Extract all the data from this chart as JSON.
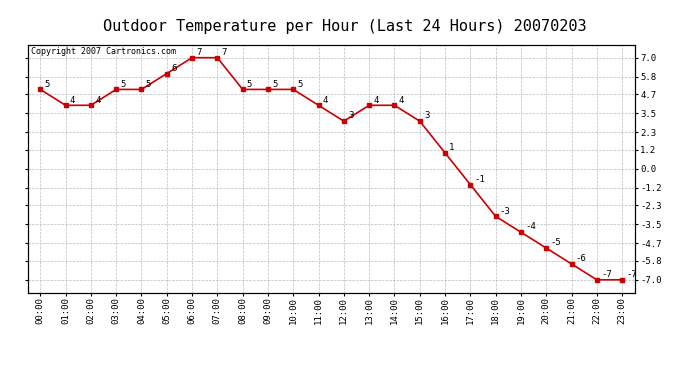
{
  "title": "Outdoor Temperature per Hour (Last 24 Hours) 20070203",
  "copyright_text": "Copyright 2007 Cartronics.com",
  "hours": [
    "00:00",
    "01:00",
    "02:00",
    "03:00",
    "04:00",
    "05:00",
    "06:00",
    "07:00",
    "08:00",
    "09:00",
    "10:00",
    "11:00",
    "12:00",
    "13:00",
    "14:00",
    "15:00",
    "16:00",
    "17:00",
    "18:00",
    "19:00",
    "20:00",
    "21:00",
    "22:00",
    "23:00"
  ],
  "temps": [
    5,
    4,
    4,
    5,
    5,
    6,
    7,
    7,
    5,
    5,
    5,
    4,
    3,
    4,
    4,
    3,
    1,
    -1,
    -3,
    -4,
    -5,
    -6,
    -7,
    -7
  ],
  "yticks": [
    7.0,
    5.8,
    4.7,
    3.5,
    2.3,
    1.2,
    0.0,
    -1.2,
    -2.3,
    -3.5,
    -4.7,
    -5.8,
    -7.0
  ],
  "ymin": -7.8,
  "ymax": 7.8,
  "line_color": "#cc0000",
  "marker_color": "#cc0000",
  "bg_color": "#ffffff",
  "grid_color": "#bbbbbb",
  "title_fontsize": 11,
  "label_fontsize": 6.5,
  "annotation_fontsize": 6.5,
  "copyright_fontsize": 6
}
